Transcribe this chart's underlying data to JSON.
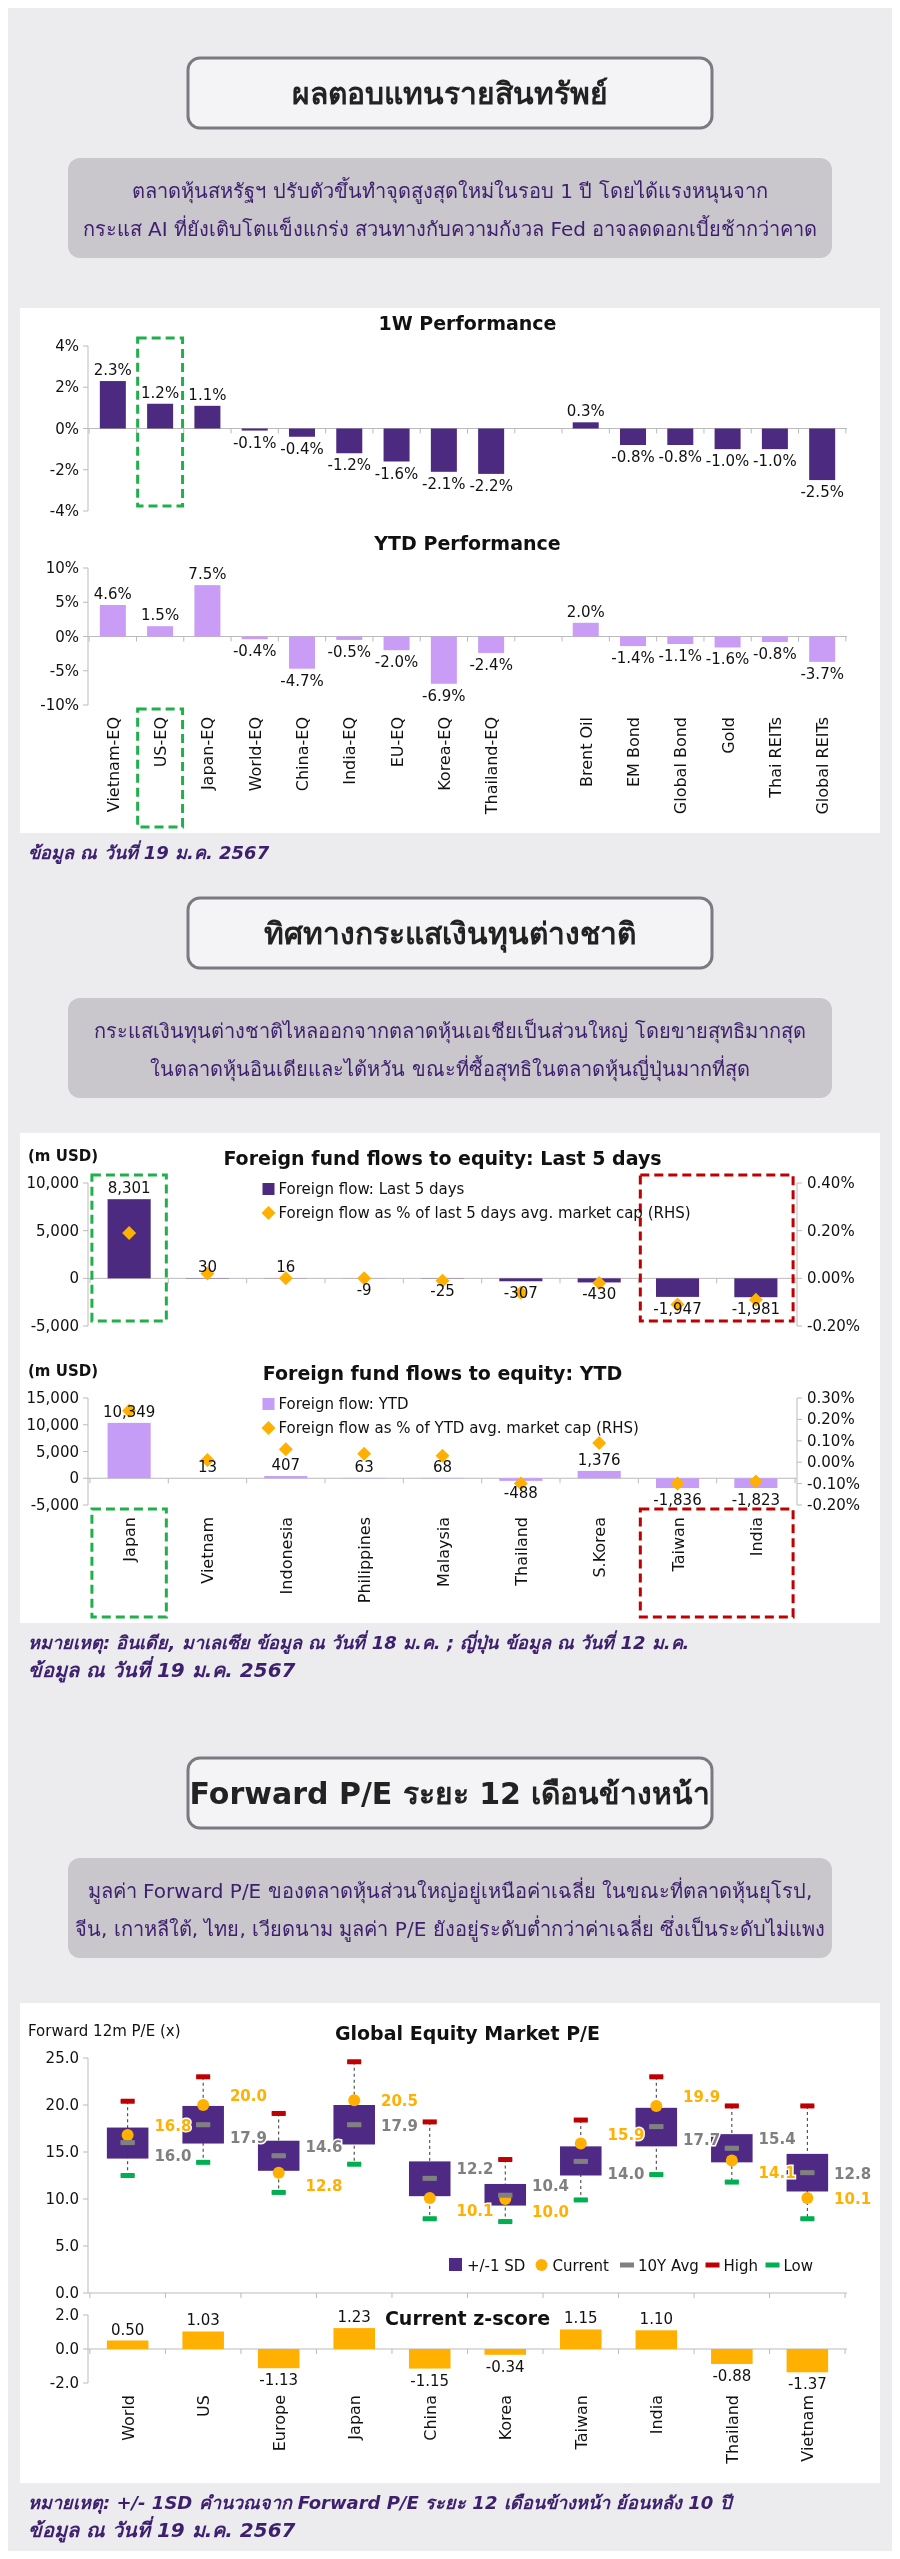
{
  "chart_data": [
    {
      "type": "other",
      "title": "ผลตอบแทนรายสินทรัพย์",
      "subtitle": "ตลาดหุ้นสหรัฐฯ ปรับตัวขึ้นทำจุดสูงสุดใหม่ในรอบ 1 ปี โดยได้แรงหนุนจาก\nกระแส AI ที่ยังเติบโตแข็งแกร่ง สวนทางกับความกังวล Fed อาจลดดอกเบี้ยช้ากว่าคาด"
    },
    {
      "type": "bar",
      "title": "1W Performance",
      "categories": [
        null,
        null,
        null,
        null,
        null,
        null,
        null,
        null,
        null,
        null,
        null,
        null,
        null,
        null,
        null,
        null
      ],
      "series": [
        {
          "color": "#4b2a7f",
          "values": [
            2.3,
            1.2,
            1.1,
            -0.1,
            -0.4,
            -1.2,
            -1.6,
            -2.1,
            -2.2,
            null,
            0.3,
            -0.8,
            -0.8,
            -1.0,
            -1.0,
            -2.5
          ],
          "value_labels": [
            "2.3%",
            "1.2%",
            "1.1%",
            "-0.1%",
            "-0.4%",
            "-1.2%",
            "-1.6%",
            "-2.1%",
            "-2.2%",
            null,
            "0.3%",
            "-0.8%",
            "-0.8%",
            "-1.0%",
            "-1.0%",
            "-2.5%"
          ]
        }
      ],
      "ylim": [
        -4,
        4
      ],
      "yticks": [
        {
          "value": -4,
          "label": "-4%"
        },
        {
          "value": -2,
          "label": "-2%"
        },
        {
          "value": 0,
          "label": "0%"
        },
        {
          "value": 2,
          "label": "2%"
        },
        {
          "value": 4,
          "label": "4%"
        }
      ],
      "tick_labels": "y"
    },
    {
      "type": "bar",
      "title": "YTD Performance",
      "categories": [
        "Vietnam-EQ",
        "US-EQ",
        "Japan-EQ",
        "World-EQ",
        "China-EQ",
        "India-EQ",
        "EU-EQ",
        "Korea-EQ",
        "Thailand-EQ",
        null,
        "Brent Oil",
        "EM Bond",
        "Global Bond",
        "Gold",
        "Thai REITs",
        "Global REITs"
      ],
      "series": [
        {
          "color": "#c99cf6",
          "values": [
            4.6,
            1.5,
            7.5,
            -0.4,
            -4.7,
            -0.5,
            -2.0,
            -6.9,
            -2.4,
            null,
            2.0,
            -1.4,
            -1.1,
            -1.6,
            -0.8,
            -3.7
          ],
          "value_labels": [
            "4.6%",
            "1.5%",
            "7.5%",
            "-0.4%",
            "-4.7%",
            "-0.5%",
            "-2.0%",
            "-6.9%",
            "-2.4%",
            null,
            "2.0%",
            "-1.4%",
            "-1.1%",
            "-1.6%",
            "-0.8%",
            "-3.7%"
          ]
        }
      ],
      "ylim": [
        -10,
        10
      ],
      "yticks": [
        {
          "value": -10,
          "label": "-10%"
        },
        {
          "value": -5,
          "label": "-5%"
        },
        {
          "value": 0,
          "label": "0%"
        },
        {
          "value": 5,
          "label": "5%"
        },
        {
          "value": 10,
          "label": "10%"
        }
      ],
      "annotations": [
        "ข้อมูล ณ วันที่ 19 ม.ค. 2567"
      ]
    },
    {
      "type": "other",
      "title": "ทิศทางกระแสเงินทุนต่างชาติ",
      "subtitle": "กระแสเงินทุนต่างชาติไหลออกจากตลาดหุ้นเอเชียเป็นส่วนใหญ่ โดยขายสุทธิมากสุด\nในตลาดหุ้นอินเดียและไต้หวัน ขณะที่ซื้อสุทธิในตลาดหุ้นญี่ปุ่นมากที่สุด"
    },
    {
      "type": "bar",
      "title": "Foreign fund flows to equity: Last 5 days",
      "ylabel": "(m USD)",
      "categories": [
        "Japan",
        "Vietnam",
        "Indonesia",
        "Philippines",
        "Malaysia",
        "Thailand",
        "S.Korea",
        "Taiwan",
        "India"
      ],
      "series": [
        {
          "name": "Foreign flow: Last 5 days",
          "color": "#4b2a7f",
          "values": [
            8301,
            30,
            16,
            -9,
            -25,
            -307,
            -430,
            -1947,
            -1981
          ],
          "value_labels": [
            "8,301",
            "30",
            "16",
            "-9",
            "-25",
            "-307",
            "-430",
            "-1,947",
            "-1,981"
          ]
        },
        {
          "type": "scatter",
          "name": "Foreign flow as % of last 5 days avg. market cap (RHS)",
          "axis": "y2",
          "color": "#ffb000",
          "marker": "diamond",
          "x": [
            "Japan",
            "Vietnam",
            "Indonesia",
            "Philippines",
            "Malaysia",
            "Thailand",
            "S.Korea",
            "Taiwan",
            "India"
          ],
          "values": [
            0.19,
            0.02,
            0.0,
            0.0,
            -0.01,
            -0.06,
            -0.02,
            -0.11,
            -0.09
          ]
        }
      ],
      "ylim": [
        -5000,
        10000
      ],
      "yticks": [
        {
          "value": -5000,
          "label": "-5,000"
        },
        0,
        {
          "value": 5000,
          "label": "5,000"
        },
        {
          "value": 10000,
          "label": "10,000"
        }
      ],
      "y2lim": [
        -0.2,
        0.4
      ],
      "y2ticks": [
        {
          "value": -0.2,
          "label": "-0.20%"
        },
        {
          "value": 0,
          "label": "0.00%"
        },
        {
          "value": 0.2,
          "label": "0.20%"
        },
        {
          "value": 0.4,
          "label": "0.40%"
        }
      ],
      "tick_labels": "y",
      "legend": "top"
    },
    {
      "type": "bar",
      "title": "Foreign fund flows to equity: YTD",
      "ylabel": "(m USD)",
      "categories": [
        "Japan",
        "Vietnam",
        "Indonesia",
        "Philippines",
        "Malaysia",
        "Thailand",
        "S.Korea",
        "Taiwan",
        "India"
      ],
      "series": [
        {
          "name": "Foreign flow: YTD",
          "color": "#c59cf6",
          "values": [
            10349,
            13,
            407,
            63,
            68,
            -488,
            1376,
            -1836,
            -1823
          ],
          "value_labels": [
            "10,349",
            "13",
            "407",
            "63",
            "68",
            "-488",
            "1,376",
            "-1,836",
            "-1,823"
          ]
        },
        {
          "type": "scatter",
          "name": "Foreign flow as % of YTD avg. market cap (RHS)",
          "axis": "y2",
          "color": "#ffb000",
          "marker": "diamond",
          "x": [
            "Japan",
            "Vietnam",
            "Indonesia",
            "Philippines",
            "Malaysia",
            "Thailand",
            "S.Korea",
            "Taiwan",
            "India"
          ],
          "values": [
            0.24,
            0.01,
            0.06,
            0.04,
            0.03,
            -0.1,
            0.09,
            -0.1,
            -0.09
          ]
        }
      ],
      "ylim": [
        -5000,
        15000
      ],
      "yticks": [
        {
          "value": -5000,
          "label": "-5,000"
        },
        0,
        {
          "value": 5000,
          "label": "5,000"
        },
        {
          "value": 10000,
          "label": "10,000"
        },
        {
          "value": 15000,
          "label": "15,000"
        }
      ],
      "y2lim": [
        -0.2,
        0.3
      ],
      "y2ticks": [
        {
          "value": -0.2,
          "label": "-0.20%"
        },
        {
          "value": -0.1,
          "label": "-0.10%"
        },
        {
          "value": 0,
          "label": "0.00%"
        },
        {
          "value": 0.1,
          "label": "0.10%"
        },
        {
          "value": 0.2,
          "label": "0.20%"
        },
        {
          "value": 0.3,
          "label": "0.30%"
        }
      ],
      "legend": "top",
      "annotations": [
        "หมายเหตุ: อินเดีย, มาเลเซีย ข้อมูล ณ วันที่ 18 ม.ค. ; ญี่ปุ่น ข้อมูล ณ วันที่ 12 ม.ค.",
        "ข้อมูล ณ วันที่ 19 ม.ค. 2567"
      ]
    },
    {
      "type": "other",
      "title": "Forward P/E ระยะ 12 เดือนข้างหน้า",
      "subtitle": "มูลค่า Forward P/E ของตลาดหุ้นส่วนใหญ่อยู่เหนือค่าเฉลี่ย ในขณะที่ตลาดหุ้นยุโรป,\nจีน, เกาหลีใต้, ไทย, เวียดนาม มูลค่า P/E ยังอยู่ระดับต่ำกว่าค่าเฉลี่ย ซึ่งเป็นระดับไม่แพง"
    },
    {
      "type": "box",
      "title": "Global Equity Market P/E",
      "ylabel": "Forward 12m P/E (x)",
      "categories": [
        "World",
        "US",
        "Europe",
        "Japan",
        "China",
        "Korea",
        "Taiwan",
        "India",
        "Thailand",
        "Vietnam"
      ],
      "series": [
        {
          "name": "+/-1 SD",
          "color": "#4f2a84",
          "boxes": [
            {
              "low": 12.5,
              "q1": 14.3,
              "median": 16.0,
              "q3": 17.6,
              "high": 20.4
            },
            {
              "low": 13.9,
              "q1": 15.9,
              "median": 17.9,
              "q3": 19.9,
              "high": 23.0
            },
            {
              "low": 10.7,
              "q1": 13.0,
              "median": 14.6,
              "q3": 16.2,
              "high": 19.1
            },
            {
              "low": 13.7,
              "q1": 15.8,
              "median": 17.9,
              "q3": 20.0,
              "high": 24.6
            },
            {
              "low": 7.9,
              "q1": 10.3,
              "median": 12.2,
              "q3": 14.0,
              "high": 18.2
            },
            {
              "low": 7.6,
              "q1": 9.3,
              "median": 10.4,
              "q3": 11.6,
              "high": 14.2
            },
            {
              "low": 9.9,
              "q1": 12.5,
              "median": 14.0,
              "q3": 15.6,
              "high": 18.4
            },
            {
              "low": 12.6,
              "q1": 15.6,
              "median": 17.7,
              "q3": 19.7,
              "high": 23.0
            },
            {
              "low": 11.8,
              "q1": 13.9,
              "median": 15.4,
              "q3": 16.9,
              "high": 19.9
            },
            {
              "low": 7.9,
              "q1": 10.8,
              "median": 12.8,
              "q3": 14.8,
              "high": 19.9
            }
          ]
        },
        {
          "type": "scatter",
          "name": "Current",
          "color": "#ffb000",
          "marker": "circle",
          "x": [
            "World",
            "US",
            "Europe",
            "Japan",
            "China",
            "Korea",
            "Taiwan",
            "India",
            "Thailand",
            "Vietnam"
          ],
          "values": [
            16.8,
            20.0,
            12.8,
            20.5,
            10.1,
            10.0,
            15.9,
            19.9,
            14.1,
            10.1
          ],
          "value_labels": [
            "16.8",
            "20.0",
            "12.8",
            "20.5",
            "10.1",
            "10.0",
            "15.9",
            "19.9",
            "14.1",
            "10.1"
          ]
        },
        {
          "type": "scatter",
          "name": "10Y Avg",
          "color": "#808080",
          "marker": "square",
          "x": [
            "World",
            "US",
            "Europe",
            "Japan",
            "China",
            "Korea",
            "Taiwan",
            "India",
            "Thailand",
            "Vietnam"
          ],
          "values": [
            16.0,
            17.9,
            14.6,
            17.9,
            12.2,
            10.4,
            14.0,
            17.7,
            15.4,
            12.8
          ],
          "value_labels": [
            "16.0",
            "17.9",
            "14.6",
            "17.9",
            "12.2",
            "10.4",
            "14.0",
            "17.7",
            "15.4",
            "12.8"
          ]
        },
        {
          "type": "scatter",
          "name": "High",
          "color": "#c00000",
          "marker": "square",
          "x": [
            "World",
            "US",
            "Europe",
            "Japan",
            "China",
            "Korea",
            "Taiwan",
            "India",
            "Thailand",
            "Vietnam"
          ],
          "values": [
            20.4,
            23.0,
            19.1,
            24.6,
            18.2,
            14.2,
            18.4,
            23.0,
            19.9,
            19.9
          ]
        },
        {
          "type": "scatter",
          "name": "Low",
          "color": "#00b050",
          "marker": "square",
          "x": [
            "World",
            "US",
            "Europe",
            "Japan",
            "China",
            "Korea",
            "Taiwan",
            "India",
            "Thailand",
            "Vietnam"
          ],
          "values": [
            12.5,
            13.9,
            10.7,
            13.7,
            7.9,
            7.6,
            9.9,
            12.6,
            11.8,
            7.9
          ]
        }
      ],
      "ylim": [
        0,
        25
      ],
      "yticks": [
        {
          "value": 0,
          "label": "0.0"
        },
        {
          "value": 5,
          "label": "5.0"
        },
        {
          "value": 10,
          "label": "10.0"
        },
        {
          "value": 15,
          "label": "15.0"
        },
        {
          "value": 20,
          "label": "20.0"
        },
        {
          "value": 25,
          "label": "25.0"
        }
      ],
      "tick_labels": "y",
      "legend": "bottom right"
    },
    {
      "type": "bar",
      "title": "Current z-score",
      "categories": [
        "World",
        "US",
        "Europe",
        "Japan",
        "China",
        "Korea",
        "Taiwan",
        "India",
        "Thailand",
        "Vietnam"
      ],
      "series": [
        {
          "color": "#ffb000",
          "values": [
            0.5,
            1.03,
            -1.13,
            1.23,
            -1.15,
            -0.34,
            1.15,
            1.1,
            -0.88,
            -1.37
          ],
          "value_labels": [
            "0.50",
            "1.03",
            "-1.13",
            "1.23",
            "-1.15",
            "-0.34",
            "1.15",
            "1.10",
            "-0.88",
            "-1.37"
          ]
        }
      ],
      "ylim": [
        -2,
        2
      ],
      "yticks": [
        {
          "value": -2,
          "label": "-2.0"
        },
        {
          "value": 0,
          "label": "0.0"
        },
        {
          "value": 2,
          "label": "2.0"
        }
      ],
      "annotations": [
        "หมายเหตุ: +/- 1SD คำนวณจาก Forward P/E ระยะ 12 เดือนข้างหน้า ย้อนหลัง 10 ปี",
        "ข้อมูล ณ วันที่ 19 ม.ค. 2567"
      ]
    }
  ]
}
